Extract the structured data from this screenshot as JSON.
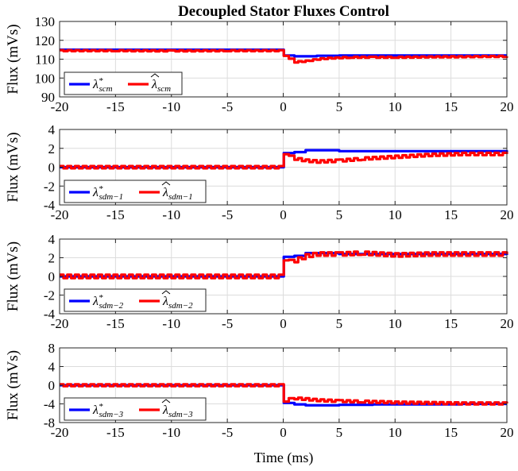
{
  "figure": {
    "title": "Decoupled Stator Fluxes Control",
    "xlabel": "Time (ms)"
  },
  "colors": {
    "reference": "#0000ff",
    "estimate": "#ff0000",
    "axes": "#262626",
    "grid": "#dcdcdc"
  },
  "chart_data": [
    {
      "type": "line",
      "title": "Decoupled Stator Fluxes Control",
      "xlabel": "",
      "ylabel": "Flux (mVs)",
      "xlim": [
        -20,
        20
      ],
      "ylim": [
        90,
        130
      ],
      "xticks": [
        -20,
        -15,
        -10,
        -5,
        0,
        5,
        10,
        15,
        20
      ],
      "yticks": [
        90,
        100,
        110,
        120,
        130
      ],
      "grid": true,
      "legend": {
        "placement": "bottom-left",
        "orientation": "horizontal"
      },
      "series": [
        {
          "name": "λ*scm",
          "legend_base": "λ",
          "legend_sup": "*",
          "legend_sub": "scm",
          "hat": false,
          "color": "blue",
          "x": [
            -20,
            -0.05,
            0.05,
            1,
            2,
            3,
            5,
            8,
            10,
            13,
            16,
            20
          ],
          "y": [
            115,
            115,
            112,
            111.5,
            111.5,
            111.8,
            112,
            112,
            112,
            112,
            112,
            112
          ]
        },
        {
          "name": "λ̂scm",
          "legend_base": "λ",
          "legend_sup": "",
          "legend_sub": "scm",
          "hat": true,
          "color": "red",
          "x": [
            -20,
            -15,
            -10,
            -5,
            -0.05,
            0.05,
            0.5,
            1,
            2,
            3,
            4,
            6,
            8,
            10,
            13,
            16,
            20
          ],
          "y": [
            114.5,
            114.5,
            114.4,
            114.5,
            114.5,
            112,
            110,
            108.5,
            109,
            110,
            110.5,
            111,
            111,
            111,
            111.2,
            111.3,
            111.5
          ],
          "jitter": 0.25
        }
      ]
    },
    {
      "type": "line",
      "xlabel": "",
      "ylabel": "Flux (mVs)",
      "xlim": [
        -20,
        20
      ],
      "ylim": [
        -4,
        4
      ],
      "xticks": [
        -20,
        -15,
        -10,
        -5,
        0,
        5,
        10,
        15,
        20
      ],
      "yticks": [
        -4,
        -2,
        0,
        2,
        4
      ],
      "grid": true,
      "legend": {
        "placement": "bottom-left",
        "orientation": "horizontal"
      },
      "series": [
        {
          "name": "λ*sdm−1",
          "legend_base": "λ",
          "legend_sup": "*",
          "legend_sub": "sdm−1",
          "hat": false,
          "color": "blue",
          "x": [
            -20,
            -0.05,
            0.05,
            1,
            2,
            3,
            5,
            8,
            10,
            13,
            16,
            20
          ],
          "y": [
            0,
            0,
            1.5,
            1.6,
            1.8,
            1.8,
            1.7,
            1.7,
            1.7,
            1.7,
            1.7,
            1.6
          ]
        },
        {
          "name": "λ̂sdm−1",
          "legend_base": "λ",
          "legend_sup": "",
          "legend_sub": "sdm−1",
          "hat": true,
          "color": "red",
          "x": [
            -20,
            -10,
            -0.05,
            0.05,
            0.5,
            1,
            2,
            3,
            5,
            7,
            10,
            13,
            16,
            20
          ],
          "y": [
            0,
            0,
            0,
            1.5,
            1.1,
            0.9,
            0.7,
            0.6,
            0.7,
            0.9,
            1.1,
            1.3,
            1.4,
            1.4
          ],
          "jitter": 0.12
        }
      ]
    },
    {
      "type": "line",
      "xlabel": "",
      "ylabel": "Flux (mVs)",
      "xlim": [
        -20,
        20
      ],
      "ylim": [
        -4,
        4
      ],
      "xticks": [
        -20,
        -15,
        -10,
        -5,
        0,
        5,
        10,
        15,
        20
      ],
      "yticks": [
        -4,
        -2,
        0,
        2,
        4
      ],
      "grid": true,
      "legend": {
        "placement": "bottom-left",
        "orientation": "horizontal"
      },
      "series": [
        {
          "name": "λ*sdm−2",
          "legend_base": "λ",
          "legend_sup": "*",
          "legend_sub": "sdm−2",
          "hat": false,
          "color": "blue",
          "x": [
            -20,
            -0.05,
            0.05,
            1,
            2,
            3,
            5,
            8,
            10,
            13,
            16,
            20
          ],
          "y": [
            0,
            0,
            2.1,
            2.2,
            2.5,
            2.5,
            2.4,
            2.4,
            2.4,
            2.4,
            2.4,
            2.3
          ]
        },
        {
          "name": "λ̂sdm−2",
          "legend_base": "λ",
          "legend_sup": "",
          "legend_sub": "sdm−2",
          "hat": true,
          "color": "red",
          "x": [
            -20,
            -10,
            -0.05,
            0.05,
            0.5,
            1,
            2,
            3,
            5,
            7,
            10,
            13,
            16,
            20
          ],
          "y": [
            0,
            0,
            0,
            1.9,
            1.6,
            1.7,
            2.2,
            2.4,
            2.4,
            2.5,
            2.3,
            2.4,
            2.4,
            2.4
          ],
          "jitter": 0.18
        }
      ]
    },
    {
      "type": "line",
      "xlabel": "Time (ms)",
      "ylabel": "Flux (mVs)",
      "xlim": [
        -20,
        20
      ],
      "ylim": [
        -8,
        8
      ],
      "xticks": [
        -20,
        -15,
        -10,
        -5,
        0,
        5,
        10,
        15,
        20
      ],
      "yticks": [
        -8,
        -4,
        0,
        4,
        8
      ],
      "grid": true,
      "legend": {
        "placement": "bottom-left",
        "orientation": "horizontal"
      },
      "series": [
        {
          "name": "λ*sdm−3",
          "legend_base": "λ",
          "legend_sup": "*",
          "legend_sub": "sdm−3",
          "hat": false,
          "color": "blue",
          "x": [
            -20,
            -0.05,
            0.05,
            1,
            2,
            3,
            5,
            8,
            10,
            13,
            16,
            20
          ],
          "y": [
            0,
            0,
            -3.8,
            -4.1,
            -4.3,
            -4.3,
            -4.2,
            -4.1,
            -4.1,
            -4.1,
            -4.0,
            -4.0
          ]
        },
        {
          "name": "λ̂sdm−3",
          "legend_base": "λ",
          "legend_sup": "",
          "legend_sub": "sdm−3",
          "hat": true,
          "color": "red",
          "x": [
            -20,
            -10,
            -0.05,
            0.05,
            0.5,
            1,
            2,
            3,
            5,
            7,
            10,
            13,
            16,
            20
          ],
          "y": [
            0,
            0,
            0,
            -3.3,
            -3.0,
            -2.8,
            -3.0,
            -3.2,
            -3.4,
            -3.5,
            -3.7,
            -3.8,
            -3.9,
            -3.9
          ],
          "jitter": 0.2
        }
      ]
    }
  ]
}
